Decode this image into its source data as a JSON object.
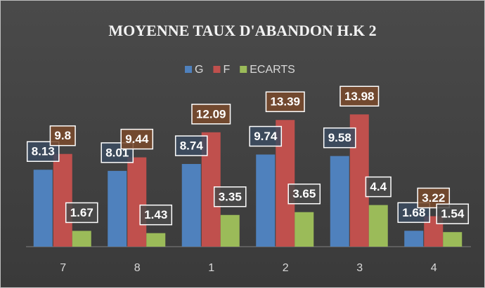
{
  "chart_data": {
    "type": "bar",
    "title": "MOYENNE TAUX D'ABANDON H.K 2",
    "categories": [
      "7",
      "8",
      "1",
      "2",
      "3",
      "4"
    ],
    "series": [
      {
        "name": "G",
        "color": "#4f81bd",
        "values": [
          8.13,
          8.01,
          8.74,
          9.74,
          9.58,
          1.68
        ]
      },
      {
        "name": "F",
        "color": "#c0504d",
        "values": [
          9.8,
          9.44,
          12.09,
          13.39,
          13.98,
          3.22
        ]
      },
      {
        "name": "ECARTS",
        "color": "#9bbb59",
        "values": [
          1.67,
          1.43,
          3.35,
          3.65,
          4.4,
          1.54
        ]
      }
    ],
    "ylim": [
      0,
      16
    ],
    "legend": "top"
  }
}
